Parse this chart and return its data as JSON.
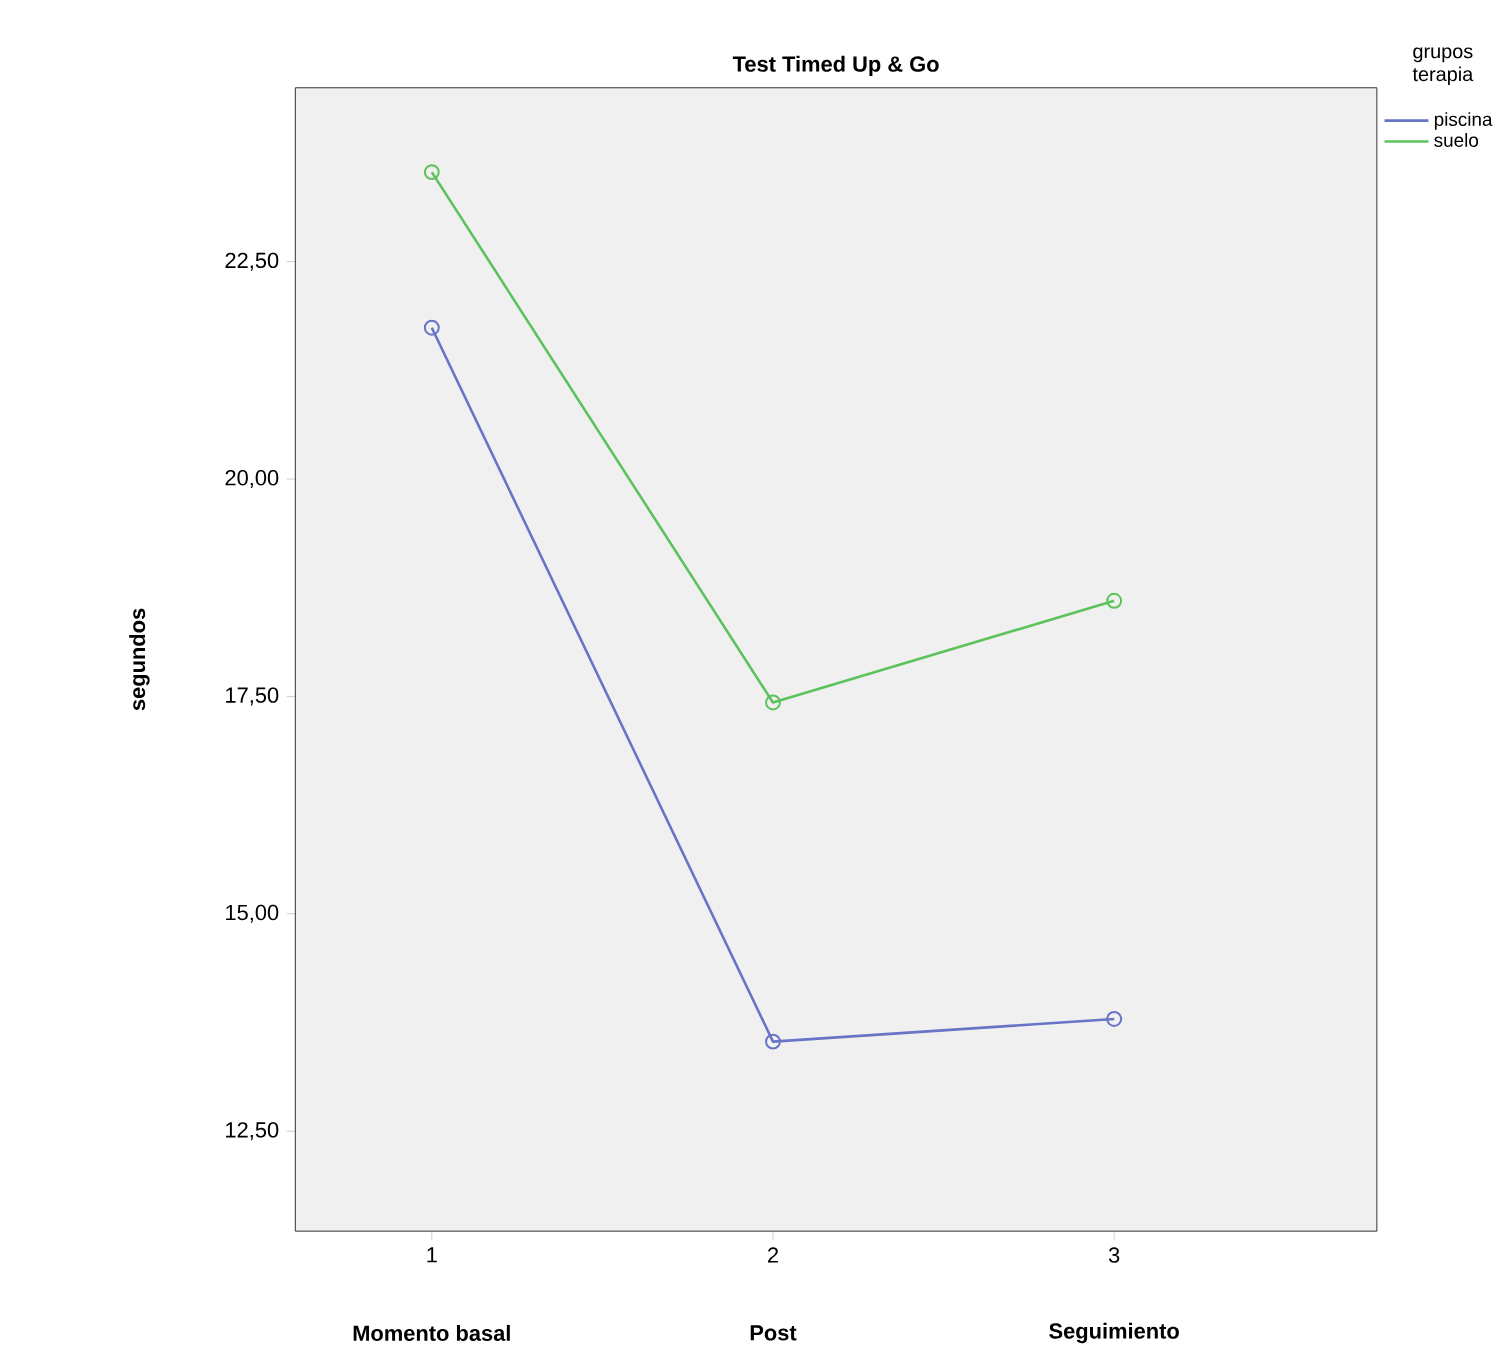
{
  "chart_data": {
    "type": "line",
    "title": "Test Timed Up & Go",
    "ylabel": "segundos",
    "legend_title": "grupos terapia",
    "x": [
      1,
      2,
      3
    ],
    "series": [
      {
        "name": "piscina",
        "color": "#6874c6",
        "values": [
          21.74,
          13.53,
          13.79
        ]
      },
      {
        "name": "suelo",
        "color": "#5cc25c",
        "values": [
          23.53,
          17.43,
          18.6
        ]
      }
    ],
    "xlim": [
      0.6,
      3.77
    ],
    "xticks": [
      1,
      2,
      3
    ],
    "ylim": [
      11.35,
      24.5
    ],
    "yticks": [
      {
        "value": 12.5,
        "label": "12,50"
      },
      {
        "value": 15,
        "label": "15,00"
      },
      {
        "value": 17.5,
        "label": "17,50"
      },
      {
        "value": 20,
        "label": "20,00"
      },
      {
        "value": 22.5,
        "label": "22,50"
      }
    ],
    "annotations": [
      "Momento basal",
      "Post",
      "Seguimiento"
    ],
    "marker": "circle",
    "line_style": "solid",
    "grid": false,
    "legend": "top right"
  }
}
